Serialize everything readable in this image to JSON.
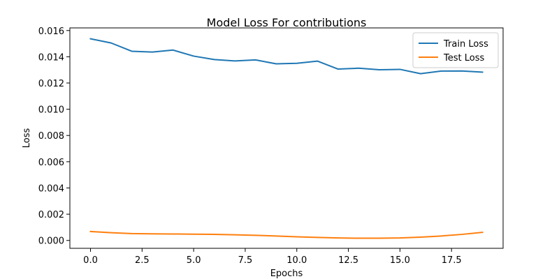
{
  "chart_data": {
    "type": "line",
    "title": "Model Loss For contributions",
    "xlabel": "Epochs",
    "ylabel": "Loss",
    "xlim": [
      -1.0,
      20.0
    ],
    "ylim": [
      -0.0006,
      0.0162
    ],
    "x_ticks": [
      0.0,
      2.5,
      5.0,
      7.5,
      10.0,
      12.5,
      15.0,
      17.5
    ],
    "x_tick_labels": [
      "0.0",
      "2.5",
      "5.0",
      "7.5",
      "10.0",
      "12.5",
      "15.0",
      "17.5"
    ],
    "y_ticks": [
      0.0,
      0.002,
      0.004,
      0.006,
      0.008,
      0.01,
      0.012,
      0.014,
      0.016
    ],
    "y_tick_labels": [
      "0.000",
      "0.002",
      "0.004",
      "0.006",
      "0.008",
      "0.010",
      "0.012",
      "0.014",
      "0.016"
    ],
    "grid": false,
    "legend_position": "top-right",
    "x": [
      0,
      1,
      2,
      3,
      4,
      5,
      6,
      7,
      8,
      9,
      10,
      11,
      12,
      13,
      14,
      15,
      16,
      17,
      18,
      19
    ],
    "series": [
      {
        "name": "Train Loss",
        "color": "#1f77b4",
        "values": [
          0.01537,
          0.01505,
          0.01442,
          0.01436,
          0.01451,
          0.01405,
          0.01379,
          0.01368,
          0.01376,
          0.01346,
          0.0135,
          0.01367,
          0.01306,
          0.01313,
          0.01301,
          0.01304,
          0.01271,
          0.01291,
          0.01292,
          0.01283
        ]
      },
      {
        "name": "Test Loss",
        "color": "#ff7f0e",
        "values": [
          0.00068,
          0.00059,
          0.00052,
          0.0005,
          0.00049,
          0.00048,
          0.00046,
          0.00043,
          0.00039,
          0.00034,
          0.00028,
          0.00023,
          0.00019,
          0.00017,
          0.00017,
          0.00019,
          0.00025,
          0.00034,
          0.00046,
          0.00062
        ]
      }
    ]
  }
}
